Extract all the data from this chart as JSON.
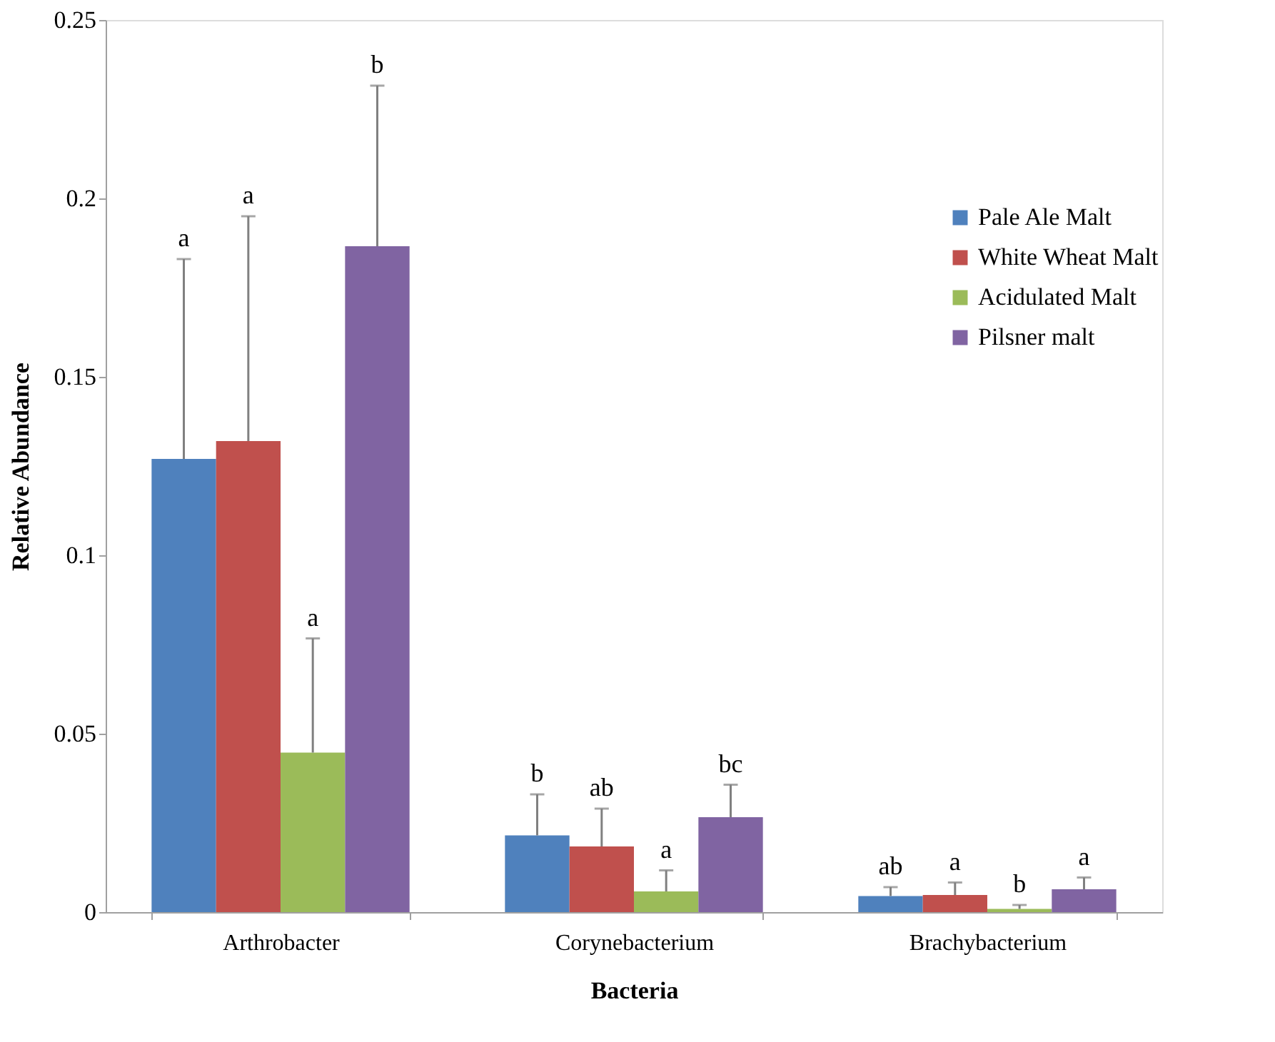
{
  "chart_data": {
    "type": "bar",
    "xlabel": "Bacteria",
    "ylabel": "Relative Abundance",
    "categories": [
      "Arthrobacter",
      "Corynebacterium",
      "Brachybacterium"
    ],
    "series": [
      {
        "name": "Pale Ale Malt",
        "color": "#4f81bd",
        "values": [
          0.127,
          0.0215,
          0.0045
        ],
        "errors": [
          [
            0.127,
            0.183
          ],
          [
            0.0215,
            0.033
          ],
          [
            0.0045,
            0.007
          ]
        ]
      },
      {
        "name": "White Wheat Malt",
        "color": "#c0504d",
        "values": [
          0.132,
          0.0184,
          0.0048
        ],
        "errors": [
          [
            0.132,
            0.195
          ],
          [
            0.0184,
            0.029
          ],
          [
            0.0048,
            0.0083
          ]
        ]
      },
      {
        "name": "Acidulated Malt",
        "color": "#9bbb59",
        "values": [
          0.0447,
          0.0058,
          0.0009
        ],
        "errors": [
          [
            0.0447,
            0.0767
          ],
          [
            0.0058,
            0.0117
          ],
          [
            0.0009,
            0.002
          ]
        ]
      },
      {
        "name": "Pilsner malt",
        "color": "#8064a2",
        "values": [
          0.1866,
          0.0266,
          0.0064
        ],
        "errors": [
          [
            0.1866,
            0.2316
          ],
          [
            0.0266,
            0.0357
          ],
          [
            0.0064,
            0.0097
          ]
        ]
      }
    ],
    "annotations": [
      "a",
      "a",
      "a",
      "b",
      "b",
      "ab",
      "a",
      "bc",
      "ab",
      "a",
      "b",
      "a"
    ],
    "ylim": [
      0,
      0.25
    ],
    "yticks": [
      0,
      0.05,
      0.1,
      0.15,
      0.2,
      0.25
    ],
    "grid": false,
    "legend": "top right"
  }
}
